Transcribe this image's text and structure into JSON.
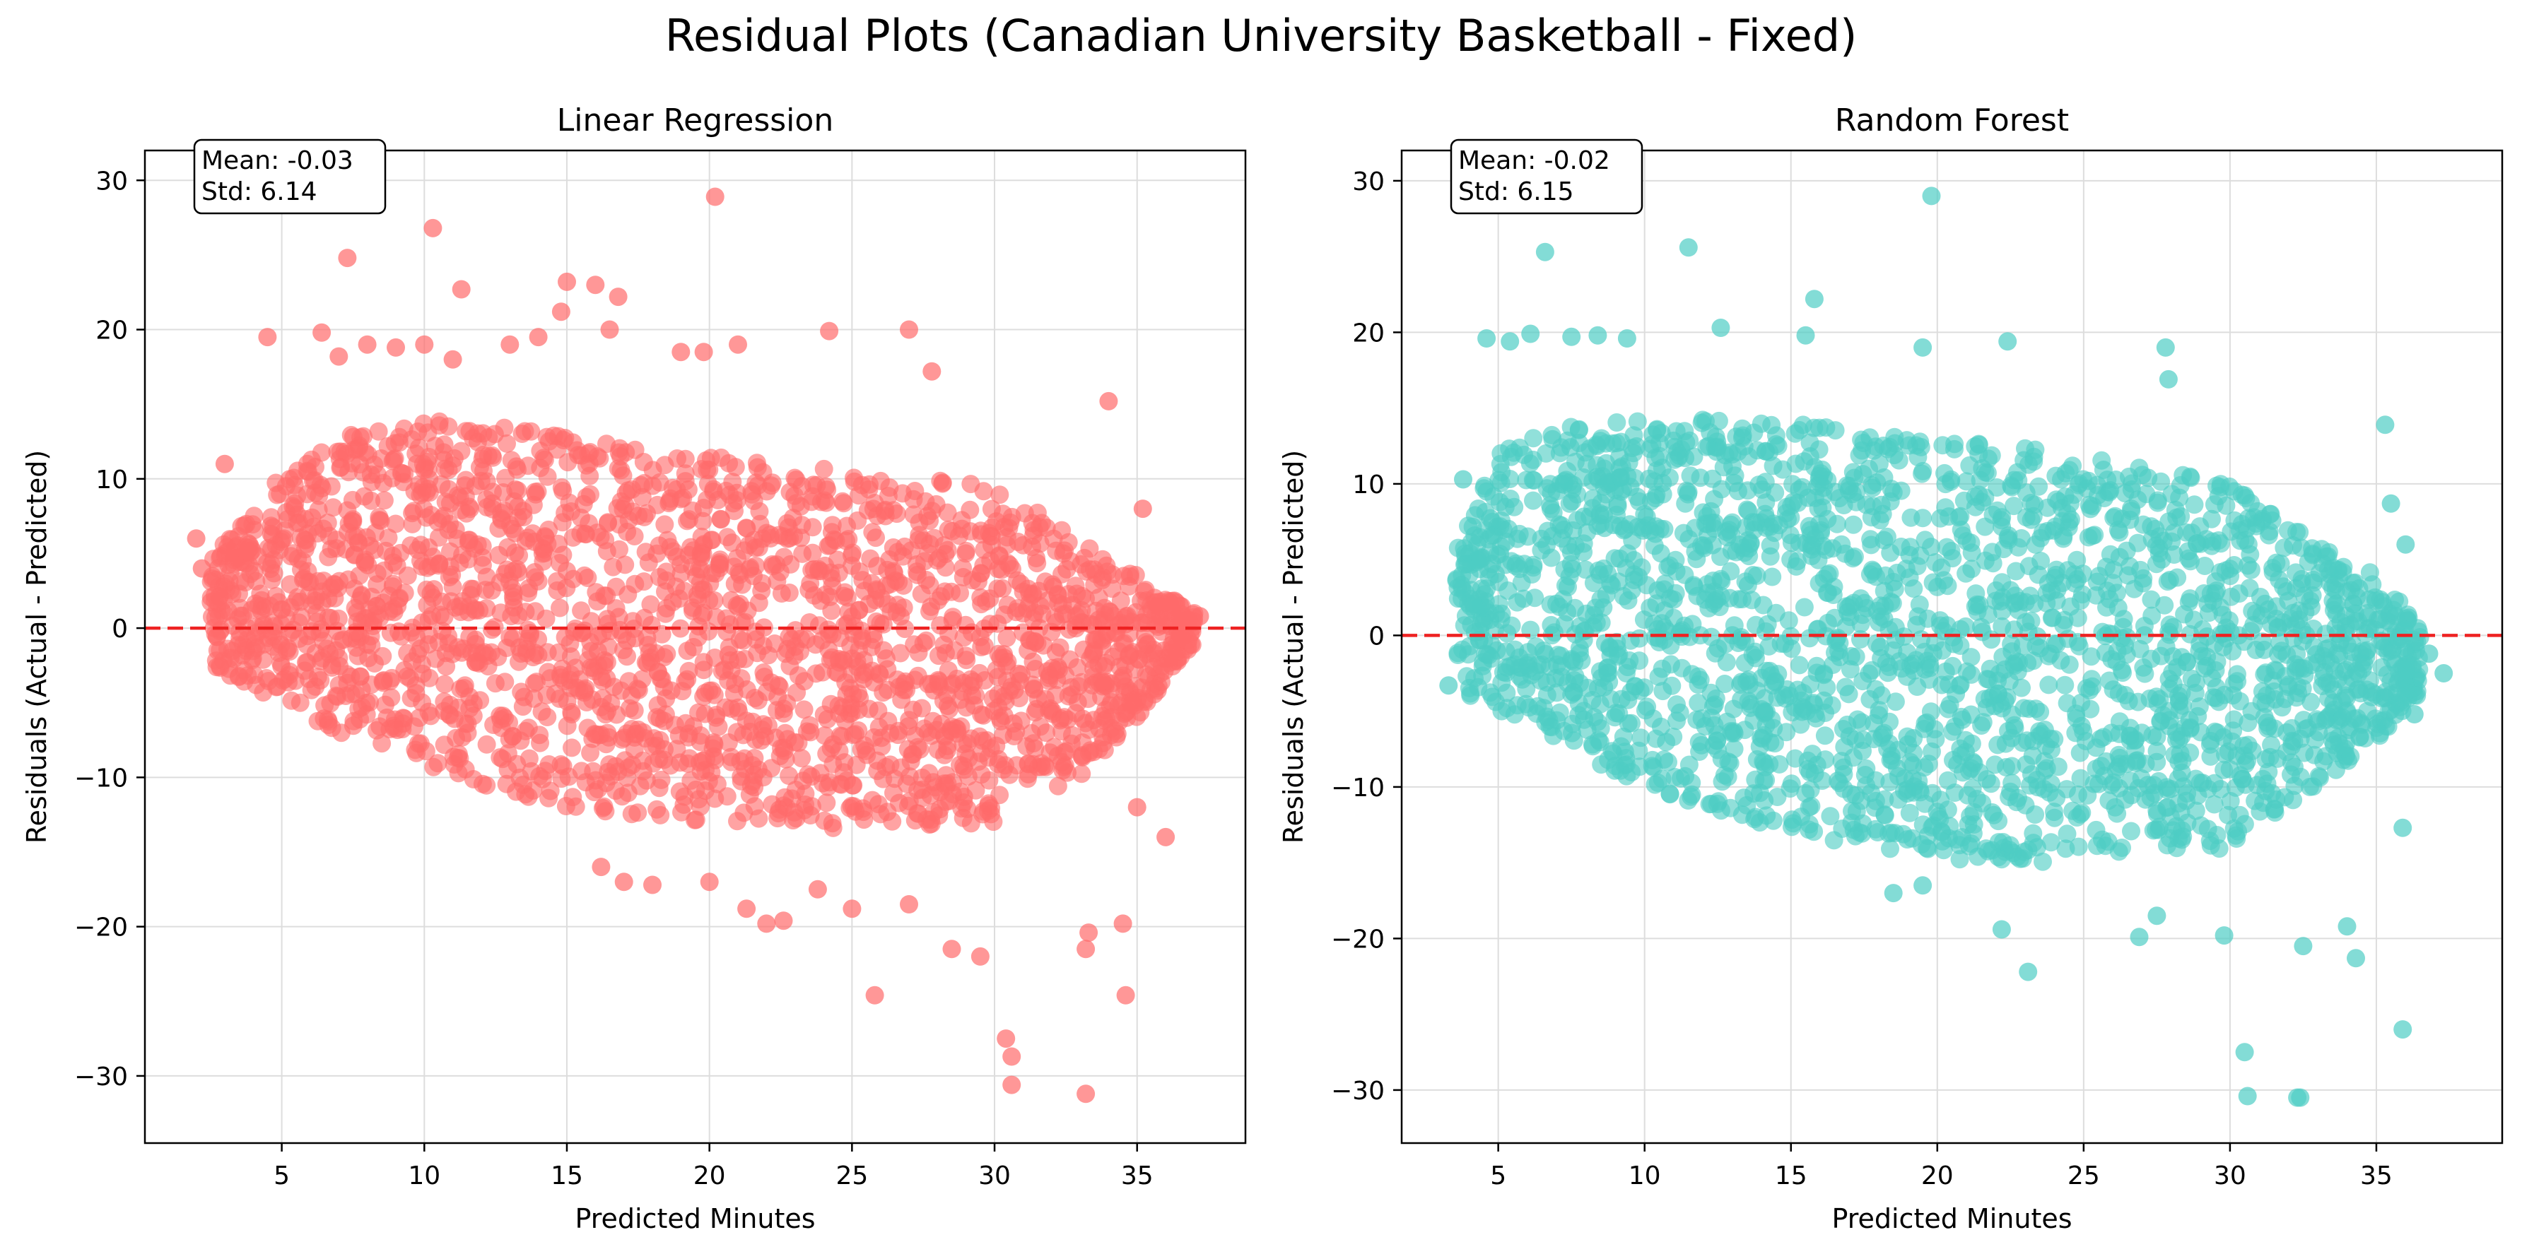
{
  "suptitle": "Residual Plots (Canadian University Basketball - Fixed)",
  "chart_data": [
    {
      "type": "scatter",
      "title": "Linear Regression",
      "xlabel": "Predicted Minutes",
      "ylabel": "Residuals (Actual - Predicted)",
      "xlim": [
        0.2,
        38.8
      ],
      "ylim": [
        -34.5,
        32
      ],
      "xticks": [
        5,
        10,
        15,
        20,
        25,
        30,
        35
      ],
      "yticks": [
        -30,
        -20,
        -10,
        0,
        10,
        20,
        30
      ],
      "grid": true,
      "color": "#ff6b6b",
      "reference_line": {
        "y": 0,
        "style": "dashed",
        "color": "#ee2222"
      },
      "stats_box": {
        "mean": "Mean: -0.03",
        "std": "Std: 6.14"
      },
      "dense_region": [
        {
          "x": 2.5,
          "lo": -2.5,
          "hi": 4.5
        },
        {
          "x": 4.5,
          "lo": -4.5,
          "hi": 9.5
        },
        {
          "x": 7,
          "lo": -7,
          "hi": 13
        },
        {
          "x": 10,
          "lo": -9.5,
          "hi": 14
        },
        {
          "x": 15,
          "lo": -12,
          "hi": 13
        },
        {
          "x": 20,
          "lo": -13,
          "hi": 11.5
        },
        {
          "x": 25,
          "lo": -13.5,
          "hi": 10.5
        },
        {
          "x": 30,
          "lo": -13,
          "hi": 9.5
        },
        {
          "x": 33,
          "lo": -10,
          "hi": 6
        },
        {
          "x": 35,
          "lo": -6,
          "hi": 3.5
        },
        {
          "x": 37,
          "lo": -1,
          "hi": 1
        }
      ],
      "outliers": [
        [
          2,
          6
        ],
        [
          2.2,
          4
        ],
        [
          3,
          11
        ],
        [
          3.2,
          -2
        ],
        [
          4.5,
          19.5
        ],
        [
          6.4,
          19.8
        ],
        [
          7,
          18.2
        ],
        [
          7.3,
          24.8
        ],
        [
          8,
          19
        ],
        [
          9,
          18.8
        ],
        [
          10,
          19
        ],
        [
          10.3,
          26.8
        ],
        [
          11,
          18
        ],
        [
          11.3,
          22.7
        ],
        [
          13,
          19
        ],
        [
          14,
          19.5
        ],
        [
          14.8,
          21.2
        ],
        [
          15,
          23.2
        ],
        [
          16,
          23
        ],
        [
          16.5,
          20
        ],
        [
          16.8,
          22.2
        ],
        [
          19,
          18.5
        ],
        [
          19.8,
          18.5
        ],
        [
          20.2,
          28.9
        ],
        [
          21,
          19
        ],
        [
          24.2,
          19.9
        ],
        [
          27,
          20
        ],
        [
          27.8,
          17.2
        ],
        [
          34,
          15.2
        ],
        [
          35.2,
          8
        ],
        [
          36.5,
          1.5
        ],
        [
          36.8,
          -0.8
        ],
        [
          37.2,
          0.8
        ],
        [
          36,
          -14
        ],
        [
          35,
          -12
        ],
        [
          34.5,
          -19.8
        ],
        [
          34.6,
          -24.6
        ],
        [
          33.3,
          -20.4
        ],
        [
          33.2,
          -21.5
        ],
        [
          33.2,
          -31.2
        ],
        [
          30.4,
          -27.5
        ],
        [
          30.6,
          -28.7
        ],
        [
          30.6,
          -30.6
        ],
        [
          29.5,
          -22
        ],
        [
          28.5,
          -21.5
        ],
        [
          27,
          -18.5
        ],
        [
          25.8,
          -24.6
        ],
        [
          25,
          -18.8
        ],
        [
          23.8,
          -17.5
        ],
        [
          22,
          -19.8
        ],
        [
          22.6,
          -19.6
        ],
        [
          21.3,
          -18.8
        ],
        [
          20,
          -17
        ],
        [
          18,
          -17.2
        ],
        [
          17,
          -17
        ],
        [
          16.2,
          -16
        ]
      ]
    },
    {
      "type": "scatter",
      "title": "Random Forest",
      "xlabel": "Predicted Minutes",
      "ylabel": "Residuals (Actual - Predicted)",
      "xlim": [
        1.7,
        39.3
      ],
      "ylim": [
        -33.5,
        32
      ],
      "xticks": [
        5,
        10,
        15,
        20,
        25,
        30,
        35
      ],
      "yticks": [
        -30,
        -20,
        -10,
        0,
        10,
        20,
        30
      ],
      "grid": true,
      "color": "#4ecdc4",
      "reference_line": {
        "y": 0,
        "style": "dashed",
        "color": "#ee2222"
      },
      "stats_box": {
        "mean": "Mean: -0.02",
        "std": "Std: 6.15"
      },
      "dense_region": [
        {
          "x": 3.5,
          "lo": -3.5,
          "hi": 5.5
        },
        {
          "x": 5,
          "lo": -5,
          "hi": 12
        },
        {
          "x": 7,
          "lo": -7,
          "hi": 14
        },
        {
          "x": 10,
          "lo": -10,
          "hi": 14.5
        },
        {
          "x": 15,
          "lo": -13,
          "hi": 14
        },
        {
          "x": 20,
          "lo": -15,
          "hi": 13
        },
        {
          "x": 25,
          "lo": -15,
          "hi": 12
        },
        {
          "x": 30,
          "lo": -14,
          "hi": 10
        },
        {
          "x": 33,
          "lo": -10,
          "hi": 6
        },
        {
          "x": 35,
          "lo": -7,
          "hi": 4
        },
        {
          "x": 36.5,
          "lo": -4,
          "hi": 1
        }
      ],
      "outliers": [
        [
          3.3,
          -3.3
        ],
        [
          3.8,
          10.3
        ],
        [
          4.6,
          19.6
        ],
        [
          5.4,
          19.4
        ],
        [
          6.1,
          19.9
        ],
        [
          6.6,
          25.3
        ],
        [
          7.5,
          19.7
        ],
        [
          8.4,
          19.8
        ],
        [
          9.4,
          19.6
        ],
        [
          11.5,
          25.6
        ],
        [
          12.6,
          20.3
        ],
        [
          15.5,
          19.8
        ],
        [
          15.8,
          22.2
        ],
        [
          19.5,
          19
        ],
        [
          19.8,
          29
        ],
        [
          22.4,
          19.4
        ],
        [
          27.8,
          19
        ],
        [
          27.9,
          16.9
        ],
        [
          35.3,
          13.9
        ],
        [
          35.5,
          8.7
        ],
        [
          36,
          6
        ],
        [
          36.3,
          -5.2
        ],
        [
          36.8,
          -1.2
        ],
        [
          37.3,
          -2.5
        ],
        [
          35.9,
          -12.7
        ],
        [
          35.9,
          -26
        ],
        [
          34.3,
          -21.3
        ],
        [
          34,
          -19.2
        ],
        [
          32.5,
          -20.5
        ],
        [
          32.3,
          -30.5
        ],
        [
          32.4,
          -30.5
        ],
        [
          30.5,
          -27.5
        ],
        [
          30.6,
          -30.4
        ],
        [
          29.8,
          -19.8
        ],
        [
          27.5,
          -18.5
        ],
        [
          26.9,
          -19.9
        ],
        [
          23.1,
          -22.2
        ],
        [
          22.2,
          -19.4
        ],
        [
          19.5,
          -16.5
        ],
        [
          18.5,
          -17
        ]
      ]
    }
  ]
}
